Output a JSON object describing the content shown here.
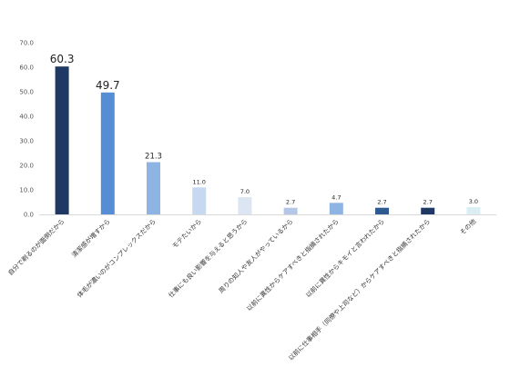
{
  "chart_data": {
    "type": "bar",
    "title": "",
    "xlabel": "",
    "ylabel": "",
    "ylim": [
      0,
      70
    ],
    "y_ticks": [
      "0.0",
      "10.0",
      "20.0",
      "30.0",
      "40.0",
      "50.0",
      "60.0",
      "70.0"
    ],
    "grid": false,
    "legend": "none",
    "categories": [
      "自分で剃るのが面倒だから",
      "清潔感が増すから",
      "体毛が濃いのがコンプレックスだから",
      "モテたいから",
      "仕事にも良い影響を与えると思うから",
      "周りの知人や友人がやっているから",
      "以前に異性からケアすべきと指摘されたから",
      "以前に異性からキモイと言われたから",
      "以前に仕事相手（同僚や上司など）からケアすべきと指摘されたから",
      "その他"
    ],
    "values": [
      60.3,
      49.7,
      21.3,
      11.0,
      7.0,
      2.7,
      4.7,
      2.7,
      2.7,
      3.0
    ],
    "value_labels": [
      "60.3",
      "49.7",
      "21.3",
      "11.0",
      "7.0",
      "2.7",
      "4.7",
      "2.7",
      "2.7",
      "3.0"
    ],
    "bar_colors": [
      "#1f3864",
      "#558ed5",
      "#8eb4e3",
      "#c6d9f1",
      "#dce6f2",
      "#b4c7e7",
      "#8eb4e3",
      "#2e5a8f",
      "#1f3864",
      "#dbeef4"
    ]
  }
}
